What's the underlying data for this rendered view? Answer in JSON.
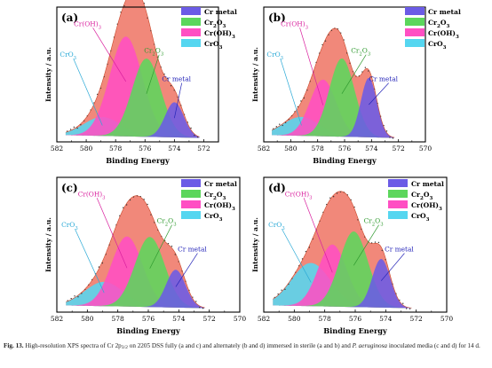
{
  "chart_data": [
    {
      "type": "area",
      "panel_label": "(a)",
      "xlabel": "Binding Energy",
      "ylabel": "Intensity / a.u.",
      "xlim": [
        582,
        571
      ],
      "xticks": [
        582,
        580,
        578,
        576,
        574,
        572
      ],
      "ylim": [
        0,
        1.0
      ],
      "peaks": [
        {
          "name": "CrO3",
          "center": 578.9,
          "fwhm": 3.0,
          "height": 0.14
        },
        {
          "name": "Cr(OH)3",
          "center": 577.3,
          "fwhm": 2.6,
          "height": 0.74
        },
        {
          "name": "Cr2O3",
          "center": 575.9,
          "fwhm": 2.3,
          "height": 0.58
        },
        {
          "name": "Cr metal",
          "center": 574.0,
          "fwhm": 1.5,
          "height": 0.26
        }
      ],
      "annotations": [
        {
          "text": "CrO3",
          "series": "CrO3"
        },
        {
          "text": "Cr(OH)3",
          "series": "Cr(OH)3"
        },
        {
          "text": "Cr2O3",
          "series": "Cr2O3"
        },
        {
          "text": "Cr metal",
          "series": "Cr metal"
        }
      ]
    },
    {
      "type": "area",
      "panel_label": "(b)",
      "xlabel": "Binding Energy",
      "ylabel": "Intensity / a.u.",
      "xlim": [
        582,
        570
      ],
      "xticks": [
        582,
        580,
        578,
        576,
        574,
        572,
        570
      ],
      "ylim": [
        0,
        1.0
      ],
      "peaks": [
        {
          "name": "CrO3",
          "center": 579.2,
          "fwhm": 3.2,
          "height": 0.14
        },
        {
          "name": "Cr(OH)3",
          "center": 577.6,
          "fwhm": 2.3,
          "height": 0.42
        },
        {
          "name": "Cr2O3",
          "center": 576.2,
          "fwhm": 2.2,
          "height": 0.58
        },
        {
          "name": "Cr metal",
          "center": 574.2,
          "fwhm": 1.4,
          "height": 0.44
        }
      ],
      "annotations": [
        {
          "text": "CrO3",
          "series": "CrO3"
        },
        {
          "text": "Cr(OH)3",
          "series": "Cr(OH)3"
        },
        {
          "text": "Cr2O3",
          "series": "Cr2O3"
        },
        {
          "text": "Cr metal",
          "series": "Cr metal"
        }
      ]
    },
    {
      "type": "area",
      "panel_label": "(c)",
      "xlabel": "Binding Energy",
      "ylabel": "Intensity / a.u.",
      "xlim": [
        582,
        570
      ],
      "xticks": [
        582,
        580,
        578,
        576,
        574,
        572,
        570
      ],
      "ylim": [
        0,
        1.0
      ],
      "peaks": [
        {
          "name": "CrO3",
          "center": 578.9,
          "fwhm": 3.0,
          "height": 0.18
        },
        {
          "name": "Cr(OH)3",
          "center": 577.4,
          "fwhm": 2.4,
          "height": 0.52
        },
        {
          "name": "Cr2O3",
          "center": 575.9,
          "fwhm": 2.3,
          "height": 0.52
        },
        {
          "name": "Cr metal",
          "center": 574.2,
          "fwhm": 1.5,
          "height": 0.28
        }
      ],
      "annotations": [
        {
          "text": "CrO3",
          "series": "CrO3"
        },
        {
          "text": "Cr(OH)3",
          "series": "Cr(OH)3"
        },
        {
          "text": "Cr2O3",
          "series": "Cr2O3"
        },
        {
          "text": "Cr metal",
          "series": "Cr metal"
        }
      ]
    },
    {
      "type": "area",
      "panel_label": "(d)",
      "xlabel": "Binding Energy",
      "ylabel": "Intensity / a.u.",
      "xlim": [
        582,
        570
      ],
      "xticks": [
        582,
        580,
        578,
        576,
        574,
        572,
        570
      ],
      "ylim": [
        0,
        1.0
      ],
      "peaks": [
        {
          "name": "CrO3",
          "center": 578.9,
          "fwhm": 3.0,
          "height": 0.32
        },
        {
          "name": "Cr(OH)3",
          "center": 577.5,
          "fwhm": 2.2,
          "height": 0.46
        },
        {
          "name": "Cr2O3",
          "center": 576.1,
          "fwhm": 2.2,
          "height": 0.56
        },
        {
          "name": "Cr metal",
          "center": 574.3,
          "fwhm": 1.4,
          "height": 0.36
        }
      ],
      "annotations": [
        {
          "text": "CrO3",
          "series": "CrO3"
        },
        {
          "text": "Cr(OH)3",
          "series": "Cr(OH)3"
        },
        {
          "text": "Cr2O3",
          "series": "Cr2O3"
        },
        {
          "text": "Cr metal",
          "series": "Cr metal"
        }
      ]
    }
  ],
  "legend": [
    {
      "name": "Cr metal",
      "color": "#6b5be6"
    },
    {
      "name": "Cr2O3",
      "color": "#5cd65c"
    },
    {
      "name": "Cr(OH)3",
      "color": "#ff4fc3"
    },
    {
      "name": "CrO3",
      "color": "#55d6f0"
    }
  ],
  "colors": {
    "envelope": "#f07b6b",
    "envelope_line": "#c94a2c",
    "annotation": {
      "CrO3": "#2aa9d6",
      "Cr(OH)3": "#d91f9e",
      "Cr2O3": "#2f9a2f",
      "Cr metal": "#2424b8"
    }
  },
  "caption": {
    "fig": "Fig. 13.",
    "t1": "High-resolution XPS spectra of Cr 2p",
    "sub": "3/2",
    "t2": "on 2205 DSS fully (a and c) and alternately (b and d) immersed in sterile (a and b) and",
    "organism": "P. aeruginosa",
    "t3": "inoculated media (c and d) for 14 d."
  }
}
